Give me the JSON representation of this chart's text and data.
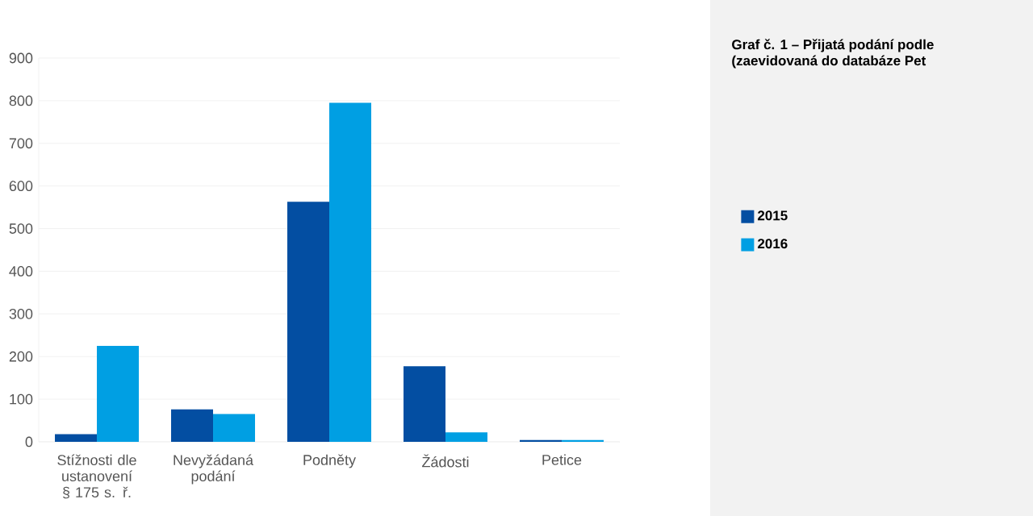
{
  "chart_data": {
    "type": "bar",
    "title": "Graf č. 1 – Přijatá podání podle",
    "subtitle": "(zaevidovaná do databáze Pet",
    "categories": [
      "Stížnosti dle ustanovení § 175 s. ř.",
      "Nevyžádaná podání",
      "Podněty",
      "Žádosti",
      "Petice"
    ],
    "series": [
      {
        "name": "2015",
        "color": "#034ea2",
        "values": [
          18,
          76,
          563,
          177,
          4
        ]
      },
      {
        "name": "2016",
        "color": "#009fe3",
        "values": [
          225,
          65,
          795,
          22,
          4
        ]
      }
    ],
    "ylim": [
      0,
      900
    ],
    "yticks": [
      0,
      100,
      200,
      300,
      400,
      500,
      600,
      700,
      800,
      900
    ],
    "grid": "y",
    "legend": "right"
  }
}
